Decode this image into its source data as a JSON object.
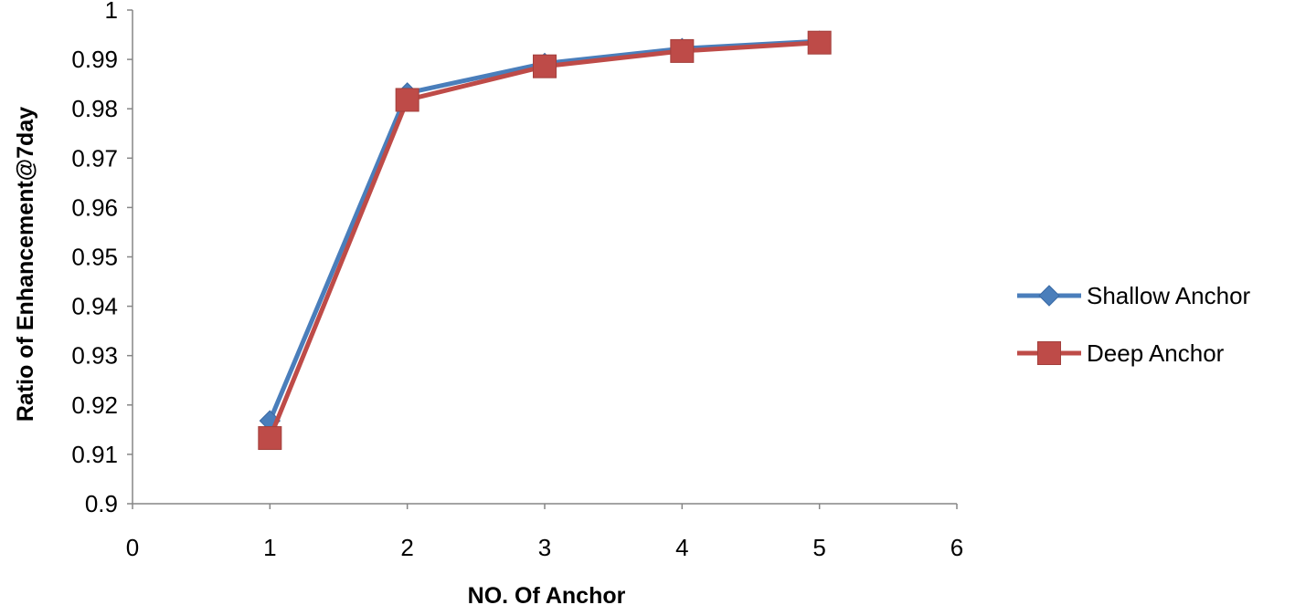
{
  "chart_data": {
    "type": "scatter",
    "xlabel": "NO. Of Anchor",
    "ylabel": "Ratio of Enhancement@7day",
    "xlim": [
      0,
      6
    ],
    "ylim": [
      0.9,
      1
    ],
    "x_ticks": [
      "0",
      "1",
      "2",
      "3",
      "4",
      "5",
      "6"
    ],
    "y_ticks": [
      "0.9",
      "0.91",
      "0.92",
      "0.93",
      "0.94",
      "0.95",
      "0.96",
      "0.97",
      "0.98",
      "0.99",
      "1"
    ],
    "grid": false,
    "legend_position": "right",
    "series": [
      {
        "name": "Shallow Anchor",
        "color": "#4a7ebb",
        "marker": "diamond",
        "x": [
          1,
          2,
          3,
          4,
          5
        ],
        "y": [
          0.9168,
          0.9832,
          0.9892,
          0.9922,
          0.9937
        ]
      },
      {
        "name": "Deep Anchor",
        "color": "#be4b48",
        "marker": "square",
        "x": [
          1,
          2,
          3,
          4,
          5
        ],
        "y": [
          0.9133,
          0.9818,
          0.9886,
          0.9917,
          0.9934
        ]
      }
    ]
  }
}
